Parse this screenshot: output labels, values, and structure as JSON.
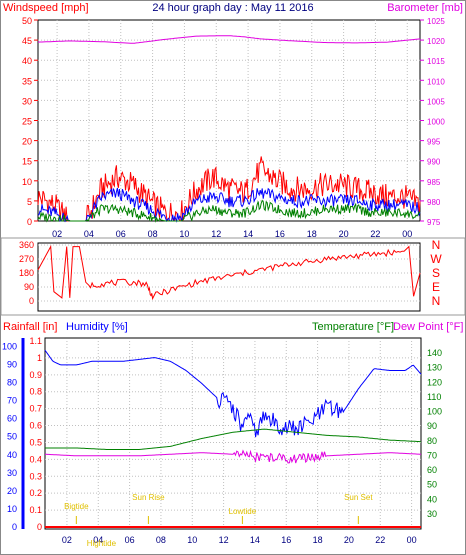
{
  "title": "24 hour graph day : May 11 2016",
  "colors": {
    "red": "#ff0000",
    "blue": "#0000ff",
    "green": "#008000",
    "magenta": "#e000e0",
    "darkred": "#c00000",
    "yellow": "#e0c000"
  },
  "chart_data": [
    {
      "type": "line",
      "left_label": "Windspeed [mph]",
      "right_label": "Barometer [mb]",
      "y_left": {
        "ticks": [
          "0",
          "5",
          "10",
          "15",
          "20",
          "25",
          "30",
          "35",
          "40",
          "45",
          "50"
        ],
        "range": [
          0,
          50
        ]
      },
      "y_right": {
        "ticks": [
          "975",
          "980",
          "985",
          "990",
          "995",
          "1000",
          "1005",
          "1010",
          "1015",
          "1020",
          "1025"
        ],
        "range": [
          975,
          1025
        ]
      },
      "x": {
        "ticks": [
          "02",
          "04",
          "06",
          "08",
          "10",
          "12",
          "14",
          "16",
          "18",
          "20",
          "22",
          "00"
        ]
      },
      "series": [
        {
          "color": "red",
          "axis": "left",
          "x": [
            0,
            1,
            2,
            3,
            4,
            5,
            6,
            7,
            8,
            9,
            10,
            11,
            12,
            13,
            14,
            15,
            16,
            17,
            18,
            19,
            20,
            21,
            22,
            23,
            24
          ],
          "y": [
            6,
            4,
            0,
            0,
            8,
            11,
            9,
            5,
            2,
            2,
            8,
            11,
            8,
            7,
            13,
            10,
            8,
            8,
            9,
            9,
            8,
            7,
            6,
            6,
            4
          ]
        },
        {
          "color": "blue",
          "axis": "left",
          "x": [
            0,
            1,
            2,
            3,
            4,
            5,
            6,
            7,
            8,
            9,
            10,
            11,
            12,
            13,
            14,
            15,
            16,
            17,
            18,
            19,
            20,
            21,
            22,
            23,
            24
          ],
          "y": [
            3,
            2,
            0,
            0,
            6,
            7,
            5,
            3,
            1,
            1,
            5,
            6,
            5,
            5,
            7,
            6,
            5,
            5,
            5,
            5,
            5,
            4,
            4,
            4,
            3
          ]
        },
        {
          "color": "green",
          "axis": "left",
          "x": [
            0,
            1,
            2,
            3,
            4,
            5,
            6,
            7,
            8,
            9,
            10,
            11,
            12,
            13,
            14,
            15,
            16,
            17,
            18,
            19,
            20,
            21,
            22,
            23,
            24
          ],
          "y": [
            1,
            1,
            0,
            0,
            3,
            3,
            2,
            1,
            0,
            0,
            2,
            3,
            2,
            2,
            4,
            3,
            2,
            2,
            3,
            3,
            3,
            2,
            2,
            2,
            1
          ]
        },
        {
          "color": "magenta",
          "axis": "right",
          "x": [
            0,
            2,
            4,
            6,
            8,
            10,
            12,
            13,
            14,
            16,
            18,
            20,
            22,
            24
          ],
          "y": [
            1019.5,
            1019.8,
            1019.6,
            1019.2,
            1020.2,
            1021.0,
            1021.1,
            1020.8,
            1020.3,
            1019.8,
            1019.4,
            1019.3,
            1019.5,
            1020.3
          ]
        }
      ]
    },
    {
      "type": "line",
      "right_labels": [
        "N",
        "W",
        "S",
        "E",
        "N"
      ],
      "y_left": {
        "ticks": [
          "360",
          "270",
          "180",
          "90",
          "0"
        ],
        "range": [
          0,
          360
        ]
      },
      "series": [
        {
          "color": "red",
          "name": "",
          "x": [
            0,
            0.8,
            1.0,
            1.5,
            1.8,
            2.0,
            2.2,
            2.6,
            3.0,
            3.2,
            4.0,
            5.0,
            6.0,
            6.8,
            7.2,
            8.0,
            9.0,
            10.0,
            11.0,
            12.0,
            13.0,
            14.0,
            15.0,
            16.0,
            17.0,
            18.0,
            19.0,
            20.0,
            21.0,
            22.0,
            23.0,
            23.3,
            23.6,
            24.0
          ],
          "y": [
            200,
            350,
            60,
            20,
            350,
            20,
            350,
            350,
            120,
            100,
            110,
            120,
            120,
            110,
            30,
            60,
            90,
            120,
            140,
            160,
            180,
            200,
            220,
            240,
            250,
            270,
            280,
            290,
            300,
            310,
            320,
            350,
            30,
            180
          ]
        }
      ]
    },
    {
      "type": "line",
      "left_label": "Rainfall [in]",
      "middle_label": "Humidity [%]",
      "right_label_1": "Temperature [°F]",
      "right_label_2": "Dew Point [°F]",
      "y_rain": {
        "ticks": [
          "0",
          "0.1",
          "0.2",
          "0.3",
          "0.4",
          "0.5",
          "0.6",
          "0.7",
          "0.8",
          "0.9",
          "1",
          "1.1"
        ]
      },
      "y_hum": {
        "ticks": [
          "0",
          "10",
          "20",
          "30",
          "40",
          "50",
          "60",
          "70",
          "80",
          "90",
          "100"
        ],
        "range": [
          0,
          100
        ]
      },
      "y_right": {
        "ticks": [
          "30",
          "40",
          "50",
          "60",
          "70",
          "80",
          "90",
          "100",
          "110",
          "120",
          "130",
          "140"
        ],
        "range": [
          30,
          140
        ]
      },
      "annotations": [
        "Bigtide",
        "Sun Rise",
        "Lowtide",
        "Sun Set",
        "Hightide"
      ],
      "x": {
        "ticks": [
          "02",
          "04",
          "06",
          "08",
          "10",
          "12",
          "14",
          "16",
          "18",
          "20",
          "22",
          "00"
        ]
      },
      "series": [
        {
          "color": "blue",
          "axis": "hum",
          "name": "",
          "x": [
            0,
            0.5,
            1,
            2,
            3,
            4,
            5,
            6,
            7,
            8,
            9,
            10,
            11,
            12,
            12.5,
            13,
            13.5,
            14,
            15,
            16,
            17,
            18,
            19,
            20,
            21,
            22,
            23,
            23.5,
            24
          ],
          "y": [
            96,
            90,
            88,
            88,
            90,
            90,
            90,
            91,
            92,
            90,
            85,
            78,
            70,
            65,
            55,
            58,
            52,
            60,
            55,
            53,
            57,
            65,
            62,
            75,
            86,
            85,
            85,
            88,
            83
          ]
        },
        {
          "color": "green",
          "axis": "right",
          "name": "",
          "x": [
            0,
            2,
            4,
            6,
            8,
            10,
            12,
            13,
            14,
            16,
            18,
            20,
            22,
            24
          ],
          "y": [
            72,
            72,
            71,
            71,
            73,
            78,
            82,
            83,
            84,
            82,
            80,
            79,
            77,
            76
          ]
        },
        {
          "color": "magenta",
          "axis": "right",
          "name": "",
          "x": [
            0,
            2,
            4,
            6,
            8,
            10,
            12,
            13,
            14,
            16,
            18,
            20,
            22,
            24
          ],
          "y": [
            68,
            67,
            67,
            67,
            68,
            69,
            68,
            67,
            66,
            65,
            67,
            68,
            69,
            68
          ]
        },
        {
          "color": "red",
          "axis": "rain",
          "name": "",
          "x": [
            0,
            24
          ],
          "y": [
            0,
            0
          ]
        }
      ]
    }
  ]
}
